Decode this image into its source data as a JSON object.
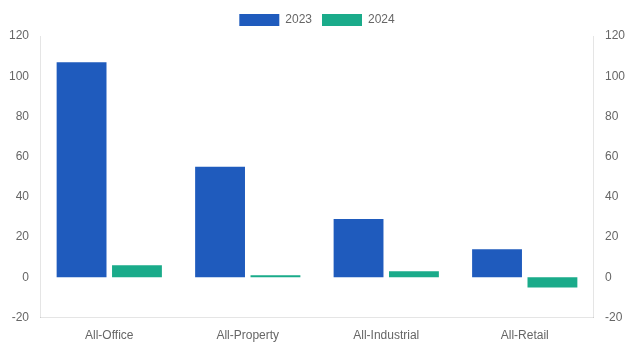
{
  "chart_data": {
    "type": "bar",
    "categories": [
      "All-Office",
      "All-Property",
      "All-Industrial",
      "All-Retail"
    ],
    "series": [
      {
        "name": "2023",
        "color": "#1f5bbd",
        "values": [
          107,
          55,
          29,
          14
        ]
      },
      {
        "name": "2024",
        "color": "#1aab8a",
        "values": [
          6,
          1,
          3,
          -5
        ]
      }
    ],
    "ylim": [
      -20,
      120
    ],
    "yticks": [
      -20,
      0,
      20,
      40,
      60,
      80,
      100,
      120
    ],
    "y2lim": [
      -20,
      120
    ],
    "y2ticks": [
      -20,
      0,
      20,
      40,
      60,
      80,
      100,
      120
    ],
    "grid": false,
    "legend": "top"
  }
}
